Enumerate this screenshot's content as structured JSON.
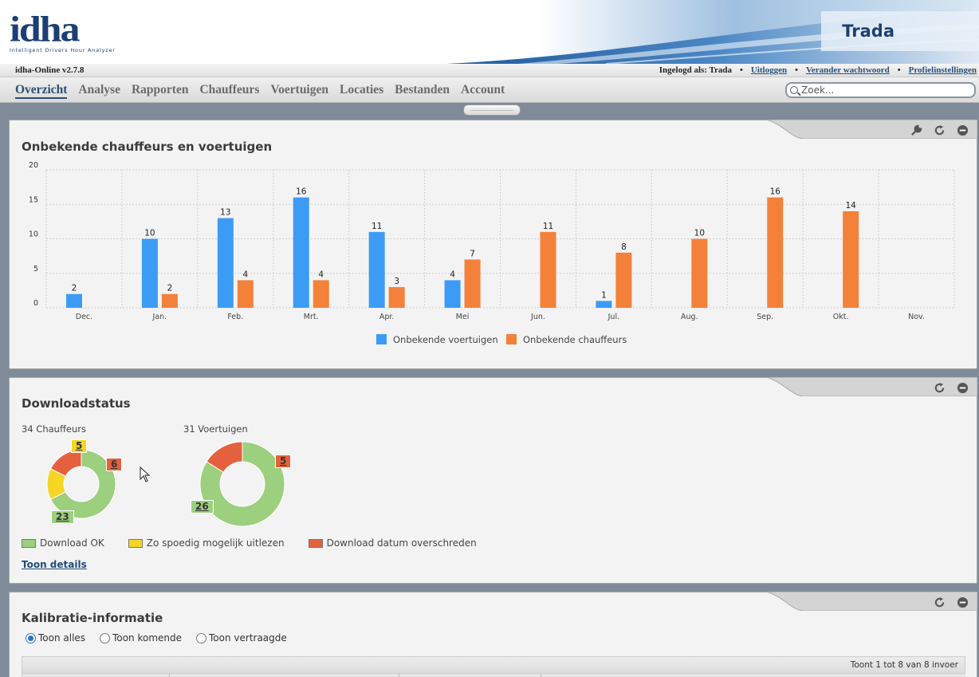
{
  "header": {
    "logo_text": "idha",
    "logo_subtitle": "Intelligent Drivers Hour Analyzer",
    "company": "Trada"
  },
  "infobar": {
    "version": "idha-Online v2.7.8",
    "logged_in": "Ingelogd als: Trada",
    "logout": "Uitloggen",
    "change_password": "Verander wachtwoord",
    "profile": "Profielinstellingen"
  },
  "nav": {
    "items": [
      "Overzicht",
      "Analyse",
      "Rapporten",
      "Chauffeurs",
      "Voertuigen",
      "Locaties",
      "Bestanden",
      "Account"
    ],
    "active": 0,
    "search_placeholder": "Zoek..."
  },
  "panel_unknown": {
    "title": "Onbekende chauffeurs en voertuigen",
    "icons": [
      "wrench-icon",
      "refresh-icon",
      "minimize-icon"
    ]
  },
  "chart_data": {
    "type": "bar",
    "title": "Onbekende chauffeurs en voertuigen",
    "categories": [
      "Dec.",
      "Jan.",
      "Feb.",
      "Mrt.",
      "Apr.",
      "Mei",
      "Jun.",
      "Jul.",
      "Aug.",
      "Sep.",
      "Okt.",
      "Nov."
    ],
    "series": [
      {
        "name": "Onbekende voertuigen",
        "color": "#3c9cf5",
        "values": [
          2,
          10,
          13,
          16,
          11,
          4,
          0,
          1,
          0,
          0,
          0,
          0
        ]
      },
      {
        "name": "Onbekende chauffeurs",
        "color": "#f3813a",
        "values": [
          0,
          2,
          4,
          4,
          3,
          7,
          11,
          8,
          10,
          16,
          14,
          0
        ]
      }
    ],
    "ylim": [
      0,
      20
    ],
    "yticks": [
      0,
      5,
      10,
      15,
      20
    ],
    "grid": true,
    "legend": "bottom-center"
  },
  "panel_download": {
    "title": "Downloadstatus",
    "icons": [
      "refresh-icon",
      "minimize-icon"
    ],
    "drivers_label": "34 Chauffeurs",
    "vehicles_label": "31 Voertuigen",
    "drivers": [
      {
        "label": "Download OK",
        "value": 23,
        "color": "#9ccf7e"
      },
      {
        "label": "Zo spoedig mogelijk uitlezen",
        "value": 5,
        "color": "#f5d525"
      },
      {
        "label": "Download datum overschreden",
        "value": 6,
        "color": "#e5613d"
      }
    ],
    "vehicles": [
      {
        "label": "Download OK",
        "value": 26,
        "color": "#9ccf7e"
      },
      {
        "label": "Download datum overschreden",
        "value": 5,
        "color": "#e5613d"
      }
    ],
    "legend": [
      {
        "label": "Download OK",
        "color": "#9ccf7e"
      },
      {
        "label": "Zo spoedig mogelijk uitlezen",
        "color": "#f5d525"
      },
      {
        "label": "Download datum overschreden",
        "color": "#e5613d"
      }
    ],
    "details_link": "Toon details"
  },
  "panel_calibration": {
    "title": "Kalibratie-informatie",
    "icons": [
      "refresh-icon",
      "minimize-icon"
    ],
    "radios": [
      {
        "label": "Toon alles",
        "checked": true
      },
      {
        "label": "Toon komende",
        "checked": false
      },
      {
        "label": "Toon vertraagde",
        "checked": false
      }
    ],
    "table_info": "Toont 1 tot 8 van 8 invoer"
  }
}
